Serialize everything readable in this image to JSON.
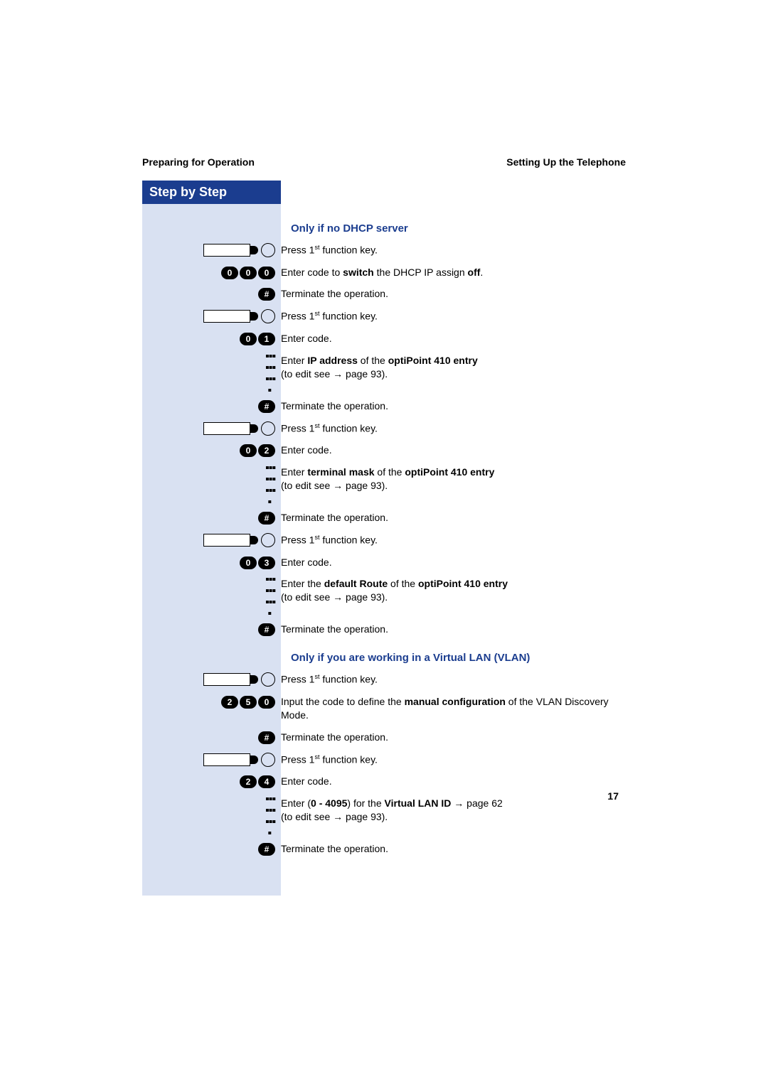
{
  "header": {
    "left": "Preparing for Operation",
    "right": "Setting Up the Telephone"
  },
  "banner": "Step by Step",
  "page_number": "17",
  "colors": {
    "banner_bg": "#1b3d8f",
    "banner_fg": "#ffffff",
    "sidebar_bg": "#d9e1f2",
    "subhead_color": "#1b3d8f",
    "text_color": "#000000"
  },
  "sections": [
    {
      "title": "Only if no DHCP server",
      "steps": [
        {
          "icon": "fnkey",
          "html": "Press 1<sup>st</sup> function key."
        },
        {
          "icon": "digits",
          "digits": [
            "0",
            "0",
            "0"
          ],
          "html": "Enter code to <b>switch</b> the DHCP IP assign <b>off</b>."
        },
        {
          "icon": "hash",
          "html": "Terminate the operation."
        },
        {
          "icon": "fnkey",
          "html": "Press 1<sup>st</sup> function key."
        },
        {
          "icon": "digits",
          "digits": [
            "0",
            "1"
          ],
          "html": "Enter code."
        },
        {
          "icon": "keypad",
          "html": "Enter <b>IP address</b> of the <b>optiPoint 410 entry</b><br>(to edit see → page 93)."
        },
        {
          "icon": "hash",
          "html": "Terminate the operation."
        },
        {
          "icon": "fnkey",
          "html": "Press 1<sup>st</sup> function key."
        },
        {
          "icon": "digits",
          "digits": [
            "0",
            "2"
          ],
          "html": "Enter code."
        },
        {
          "icon": "keypad",
          "html": "Enter <b>terminal mask</b> of the <b>optiPoint 410 entry</b><br>(to edit see → page 93)."
        },
        {
          "icon": "hash",
          "html": "Terminate the operation."
        },
        {
          "icon": "fnkey",
          "html": "Press 1<sup>st</sup> function key."
        },
        {
          "icon": "digits",
          "digits": [
            "0",
            "3"
          ],
          "html": "Enter code."
        },
        {
          "icon": "keypad",
          "html": "Enter the <b>default Route</b> of the <b>optiPoint 410 entry</b><br>(to edit see → page 93)."
        },
        {
          "icon": "hash",
          "html": "Terminate the operation."
        }
      ]
    },
    {
      "title": "Only if you are working in a Virtual LAN (VLAN)",
      "steps": [
        {
          "icon": "fnkey",
          "html": "Press 1<sup>st</sup> function key."
        },
        {
          "icon": "digits",
          "digits": [
            "2",
            "5",
            "0"
          ],
          "html": "Input the code to define the <b>manual configuration</b> of the VLAN Discovery Mode."
        },
        {
          "icon": "hash",
          "html": "Terminate the operation."
        },
        {
          "icon": "fnkey",
          "html": "Press 1<sup>st</sup> function key."
        },
        {
          "icon": "digits",
          "digits": [
            "2",
            "4"
          ],
          "html": "Enter code."
        },
        {
          "icon": "keypad",
          "html": "Enter (<b>0 - 4095</b>) for the <b>Virtual LAN ID</b> → page 62<br>(to edit see → page 93)."
        },
        {
          "icon": "hash",
          "html": "Terminate the operation."
        }
      ]
    }
  ]
}
